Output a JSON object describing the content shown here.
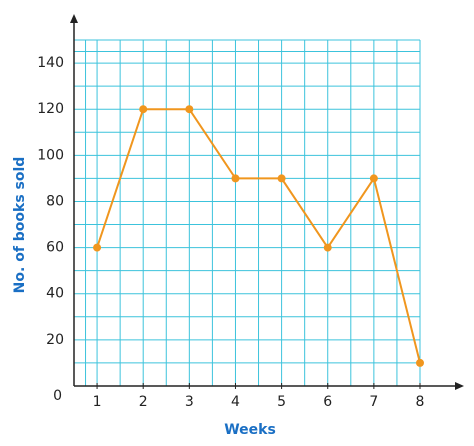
{
  "chart_data": {
    "type": "line",
    "x_label": "Weeks",
    "y_label": "No. of books sold",
    "x": [
      1,
      2,
      3,
      4,
      5,
      6,
      7,
      8
    ],
    "series": [
      {
        "color": "#f0961e",
        "values": [
          60,
          120,
          120,
          90,
          90,
          60,
          90,
          10
        ]
      }
    ],
    "xlim": [
      0.5,
      8
    ],
    "xticks": [
      1,
      2,
      3,
      4,
      5,
      6,
      7,
      8
    ],
    "ylim": [
      0,
      150
    ],
    "yticks": [
      0,
      20,
      40,
      60,
      80,
      100,
      120,
      140
    ],
    "grid": true,
    "grid_color": "#3cc3dc",
    "axis_label_color": "#1a6fc4"
  }
}
